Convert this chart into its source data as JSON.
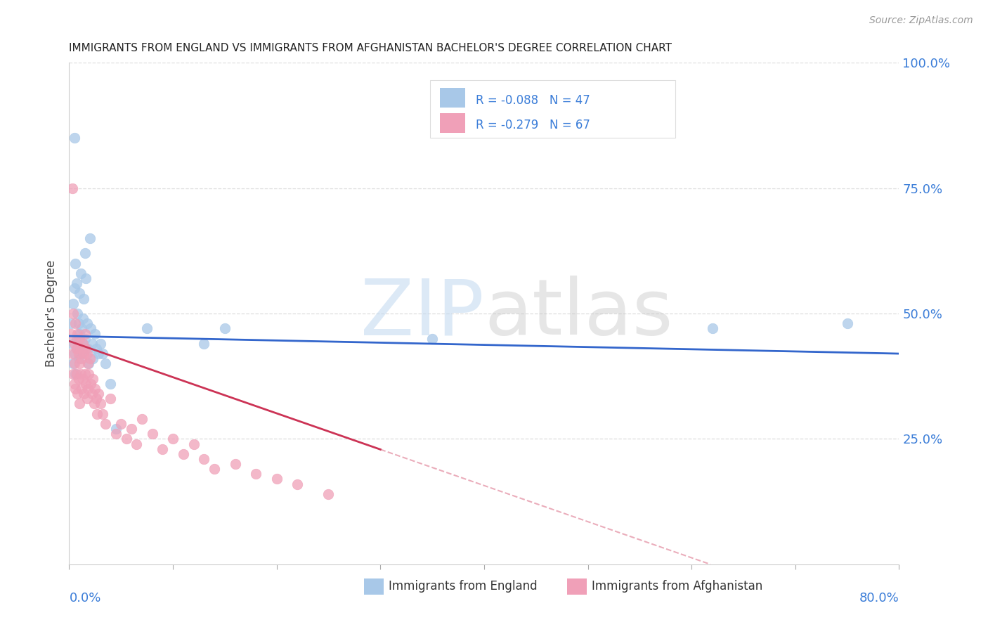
{
  "title": "IMMIGRANTS FROM ENGLAND VS IMMIGRANTS FROM AFGHANISTAN BACHELOR'S DEGREE CORRELATION CHART",
  "source": "Source: ZipAtlas.com",
  "ylabel": "Bachelor's Degree",
  "xlim": [
    0.0,
    0.8
  ],
  "ylim": [
    0.0,
    1.0
  ],
  "england_R": -0.088,
  "england_N": 47,
  "afghanistan_R": -0.279,
  "afghanistan_N": 67,
  "england_color": "#A8C8E8",
  "afghanistan_color": "#F0A0B8",
  "england_line_color": "#3366CC",
  "afghanistan_line_color": "#CC3355",
  "legend_text_color": "#3B7DD8",
  "ytick_label_color": "#3B7DD8",
  "xtick_label_color": "#3B7DD8",
  "watermark_zip_color": "#C0D8F0",
  "watermark_atlas_color": "#C8C8C8",
  "legend_box_color": "#E8E8E8",
  "grid_color": "#DDDDDD",
  "spine_color": "#CCCCCC",
  "title_color": "#222222",
  "ylabel_color": "#444444",
  "bottom_legend_text_color": "#333333",
  "ytick_positions": [
    0.0,
    0.25,
    0.5,
    0.75,
    1.0
  ],
  "ytick_labels": [
    "",
    "25.0%",
    "50.0%",
    "75.0%",
    "100.0%"
  ],
  "xtick_label_left": "0.0%",
  "xtick_label_right": "80.0%",
  "legend_label_england": "Immigrants from England",
  "legend_label_afghanistan": "Immigrants from Afghanistan",
  "eng_x": [
    0.002,
    0.003,
    0.004,
    0.004,
    0.005,
    0.005,
    0.006,
    0.006,
    0.007,
    0.007,
    0.008,
    0.008,
    0.009,
    0.009,
    0.01,
    0.01,
    0.011,
    0.012,
    0.012,
    0.013,
    0.013,
    0.014,
    0.015,
    0.015,
    0.016,
    0.017,
    0.018,
    0.019,
    0.02,
    0.021,
    0.022,
    0.023,
    0.025,
    0.026,
    0.028,
    0.03,
    0.032,
    0.035,
    0.04,
    0.045,
    0.075,
    0.13,
    0.15,
    0.35,
    0.62,
    0.75,
    0.005
  ],
  "eng_y": [
    0.48,
    0.44,
    0.52,
    0.4,
    0.55,
    0.42,
    0.6,
    0.38,
    0.56,
    0.45,
    0.5,
    0.43,
    0.48,
    0.41,
    0.54,
    0.46,
    0.58,
    0.47,
    0.42,
    0.49,
    0.44,
    0.53,
    0.62,
    0.45,
    0.57,
    0.48,
    0.43,
    0.4,
    0.65,
    0.47,
    0.44,
    0.41,
    0.46,
    0.43,
    0.42,
    0.44,
    0.42,
    0.4,
    0.36,
    0.27,
    0.47,
    0.44,
    0.47,
    0.45,
    0.47,
    0.48,
    0.85
  ],
  "afg_x": [
    0.002,
    0.003,
    0.004,
    0.004,
    0.005,
    0.005,
    0.005,
    0.006,
    0.006,
    0.007,
    0.007,
    0.008,
    0.008,
    0.009,
    0.009,
    0.01,
    0.01,
    0.01,
    0.011,
    0.011,
    0.012,
    0.012,
    0.013,
    0.013,
    0.014,
    0.014,
    0.015,
    0.015,
    0.016,
    0.016,
    0.017,
    0.017,
    0.018,
    0.018,
    0.019,
    0.02,
    0.021,
    0.022,
    0.023,
    0.024,
    0.025,
    0.026,
    0.027,
    0.028,
    0.03,
    0.032,
    0.035,
    0.04,
    0.045,
    0.05,
    0.055,
    0.06,
    0.065,
    0.07,
    0.08,
    0.09,
    0.1,
    0.11,
    0.12,
    0.13,
    0.14,
    0.16,
    0.18,
    0.2,
    0.22,
    0.25,
    0.003
  ],
  "afg_y": [
    0.46,
    0.42,
    0.5,
    0.38,
    0.44,
    0.4,
    0.36,
    0.48,
    0.35,
    0.43,
    0.38,
    0.46,
    0.34,
    0.42,
    0.37,
    0.45,
    0.4,
    0.32,
    0.43,
    0.38,
    0.41,
    0.35,
    0.44,
    0.37,
    0.42,
    0.34,
    0.46,
    0.38,
    0.43,
    0.36,
    0.42,
    0.33,
    0.4,
    0.35,
    0.38,
    0.41,
    0.36,
    0.34,
    0.37,
    0.32,
    0.35,
    0.33,
    0.3,
    0.34,
    0.32,
    0.3,
    0.28,
    0.33,
    0.26,
    0.28,
    0.25,
    0.27,
    0.24,
    0.29,
    0.26,
    0.23,
    0.25,
    0.22,
    0.24,
    0.21,
    0.19,
    0.2,
    0.18,
    0.17,
    0.16,
    0.14,
    0.75
  ],
  "eng_trendline_x": [
    0.0,
    0.8
  ],
  "eng_trendline_y": [
    0.455,
    0.42
  ],
  "afg_trendline_x0": 0.0,
  "afg_trendline_y0": 0.445,
  "afg_trendline_slope": -0.72
}
